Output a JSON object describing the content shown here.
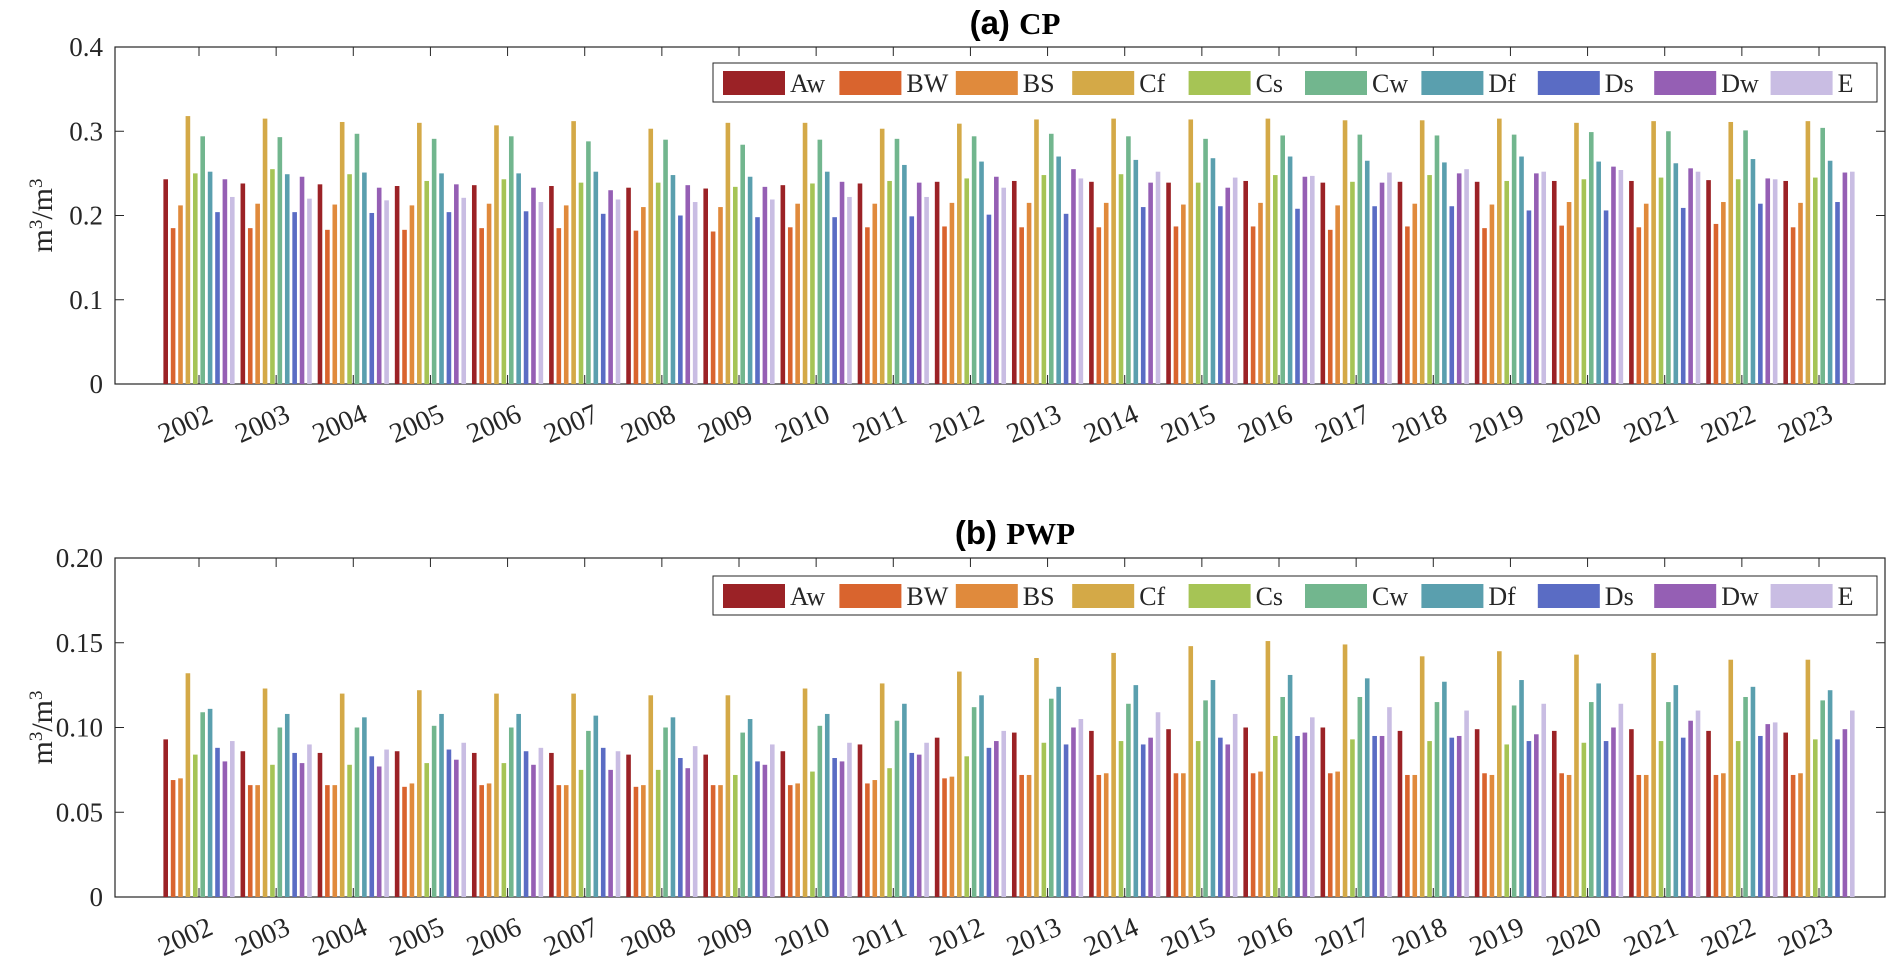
{
  "legend": [
    "Aw",
    "BW",
    "BS",
    "Cf",
    "Cs",
    "Cw",
    "Df",
    "Ds",
    "Dw",
    "E"
  ],
  "colors": [
    "#9b2226",
    "#d9642e",
    "#e08a3c",
    "#d4a947",
    "#a6c455",
    "#72b68e",
    "#5a9fae",
    "#5a6cc4",
    "#955fb4",
    "#c9bde3"
  ],
  "chart_data": [
    {
      "type": "bar",
      "panel_label": "(a)",
      "title": "CP",
      "ylabel": "m3/m3",
      "ylim": [
        0,
        0.4
      ],
      "yticks": [
        "0",
        "0.1",
        "0.2",
        "0.3",
        "0.4"
      ],
      "tick_values": [
        0,
        0.1,
        0.2,
        0.3,
        0.4
      ],
      "categories": [
        "2002",
        "2003",
        "2004",
        "2005",
        "2006",
        "2007",
        "2008",
        "2009",
        "2010",
        "2011",
        "2012",
        "2013",
        "2014",
        "2015",
        "2016",
        "2017",
        "2018",
        "2019",
        "2020",
        "2021",
        "2022",
        "2023"
      ],
      "series": [
        {
          "name": "Aw",
          "values": [
            0.243,
            0.238,
            0.237,
            0.235,
            0.236,
            0.235,
            0.233,
            0.232,
            0.236,
            0.238,
            0.24,
            0.241,
            0.24,
            0.239,
            0.241,
            0.239,
            0.24,
            0.24,
            0.241,
            0.241,
            0.242,
            0.241
          ]
        },
        {
          "name": "BW",
          "values": [
            0.185,
            0.185,
            0.183,
            0.183,
            0.185,
            0.185,
            0.182,
            0.181,
            0.186,
            0.186,
            0.187,
            0.186,
            0.186,
            0.187,
            0.187,
            0.183,
            0.187,
            0.185,
            0.188,
            0.186,
            0.19,
            0.186
          ]
        },
        {
          "name": "BS",
          "values": [
            0.212,
            0.214,
            0.213,
            0.212,
            0.214,
            0.212,
            0.21,
            0.21,
            0.214,
            0.214,
            0.215,
            0.215,
            0.215,
            0.213,
            0.215,
            0.212,
            0.214,
            0.213,
            0.216,
            0.214,
            0.216,
            0.215
          ]
        },
        {
          "name": "Cf",
          "values": [
            0.318,
            0.315,
            0.311,
            0.31,
            0.307,
            0.312,
            0.303,
            0.31,
            0.31,
            0.303,
            0.309,
            0.314,
            0.315,
            0.314,
            0.315,
            0.313,
            0.313,
            0.315,
            0.31,
            0.312,
            0.311,
            0.312
          ]
        },
        {
          "name": "Cs",
          "values": [
            0.25,
            0.255,
            0.249,
            0.241,
            0.243,
            0.239,
            0.239,
            0.234,
            0.238,
            0.241,
            0.244,
            0.248,
            0.249,
            0.239,
            0.248,
            0.24,
            0.248,
            0.241,
            0.243,
            0.245,
            0.243,
            0.245
          ]
        },
        {
          "name": "Cw",
          "values": [
            0.294,
            0.293,
            0.297,
            0.291,
            0.294,
            0.288,
            0.29,
            0.284,
            0.29,
            0.291,
            0.294,
            0.297,
            0.294,
            0.291,
            0.295,
            0.296,
            0.295,
            0.296,
            0.299,
            0.3,
            0.301,
            0.304
          ]
        },
        {
          "name": "Df",
          "values": [
            0.252,
            0.249,
            0.251,
            0.25,
            0.25,
            0.252,
            0.248,
            0.246,
            0.252,
            0.26,
            0.264,
            0.27,
            0.266,
            0.268,
            0.27,
            0.265,
            0.263,
            0.27,
            0.264,
            0.262,
            0.267,
            0.265
          ]
        },
        {
          "name": "Ds",
          "values": [
            0.204,
            0.204,
            0.203,
            0.204,
            0.205,
            0.202,
            0.2,
            0.198,
            0.198,
            0.199,
            0.201,
            0.202,
            0.21,
            0.211,
            0.208,
            0.211,
            0.211,
            0.206,
            0.206,
            0.209,
            0.214,
            0.216
          ]
        },
        {
          "name": "Dw",
          "values": [
            0.243,
            0.246,
            0.233,
            0.237,
            0.233,
            0.23,
            0.236,
            0.234,
            0.24,
            0.239,
            0.246,
            0.255,
            0.239,
            0.233,
            0.246,
            0.239,
            0.25,
            0.25,
            0.258,
            0.256,
            0.244,
            0.251
          ]
        },
        {
          "name": "E",
          "values": [
            0.222,
            0.22,
            0.218,
            0.221,
            0.216,
            0.219,
            0.216,
            0.219,
            0.222,
            0.222,
            0.233,
            0.244,
            0.252,
            0.245,
            0.247,
            0.251,
            0.255,
            0.252,
            0.254,
            0.252,
            0.243,
            0.252
          ]
        }
      ]
    },
    {
      "type": "bar",
      "panel_label": "(b)",
      "title": "PWP",
      "ylabel": "m3/m3",
      "ylim": [
        0,
        0.2
      ],
      "yticks": [
        "0",
        "0.05",
        "0.10",
        "0.15",
        "0.20"
      ],
      "tick_values": [
        0,
        0.05,
        0.1,
        0.15,
        0.2
      ],
      "categories": [
        "2002",
        "2003",
        "2004",
        "2005",
        "2006",
        "2007",
        "2008",
        "2009",
        "2010",
        "2011",
        "2012",
        "2013",
        "2014",
        "2015",
        "2016",
        "2017",
        "2018",
        "2019",
        "2020",
        "2021",
        "2022",
        "2023"
      ],
      "series": [
        {
          "name": "Aw",
          "values": [
            0.093,
            0.086,
            0.085,
            0.086,
            0.085,
            0.085,
            0.084,
            0.084,
            0.086,
            0.09,
            0.094,
            0.097,
            0.098,
            0.099,
            0.1,
            0.1,
            0.098,
            0.099,
            0.098,
            0.099,
            0.098,
            0.097
          ]
        },
        {
          "name": "BW",
          "values": [
            0.069,
            0.066,
            0.066,
            0.065,
            0.066,
            0.066,
            0.065,
            0.066,
            0.066,
            0.067,
            0.07,
            0.072,
            0.072,
            0.073,
            0.073,
            0.073,
            0.072,
            0.073,
            0.073,
            0.072,
            0.072,
            0.072
          ]
        },
        {
          "name": "BS",
          "values": [
            0.07,
            0.066,
            0.066,
            0.067,
            0.067,
            0.066,
            0.066,
            0.066,
            0.067,
            0.069,
            0.071,
            0.072,
            0.073,
            0.073,
            0.074,
            0.074,
            0.072,
            0.072,
            0.072,
            0.072,
            0.073,
            0.073
          ]
        },
        {
          "name": "Cf",
          "values": [
            0.132,
            0.123,
            0.12,
            0.122,
            0.12,
            0.12,
            0.119,
            0.119,
            0.123,
            0.126,
            0.133,
            0.141,
            0.144,
            0.148,
            0.151,
            0.149,
            0.142,
            0.145,
            0.143,
            0.144,
            0.14,
            0.14
          ]
        },
        {
          "name": "Cs",
          "values": [
            0.084,
            0.078,
            0.078,
            0.079,
            0.079,
            0.075,
            0.075,
            0.072,
            0.074,
            0.076,
            0.083,
            0.091,
            0.092,
            0.092,
            0.095,
            0.093,
            0.092,
            0.09,
            0.091,
            0.092,
            0.092,
            0.093
          ]
        },
        {
          "name": "Cw",
          "values": [
            0.109,
            0.1,
            0.1,
            0.101,
            0.1,
            0.098,
            0.1,
            0.097,
            0.101,
            0.104,
            0.112,
            0.117,
            0.114,
            0.116,
            0.118,
            0.118,
            0.115,
            0.113,
            0.115,
            0.115,
            0.118,
            0.116
          ]
        },
        {
          "name": "Df",
          "values": [
            0.111,
            0.108,
            0.106,
            0.108,
            0.108,
            0.107,
            0.106,
            0.105,
            0.108,
            0.114,
            0.119,
            0.124,
            0.125,
            0.128,
            0.131,
            0.129,
            0.127,
            0.128,
            0.126,
            0.125,
            0.124,
            0.122
          ]
        },
        {
          "name": "Ds",
          "values": [
            0.088,
            0.085,
            0.083,
            0.087,
            0.086,
            0.088,
            0.082,
            0.08,
            0.082,
            0.085,
            0.088,
            0.09,
            0.09,
            0.094,
            0.095,
            0.095,
            0.094,
            0.092,
            0.092,
            0.094,
            0.095,
            0.093
          ]
        },
        {
          "name": "Dw",
          "values": [
            0.08,
            0.079,
            0.077,
            0.081,
            0.078,
            0.075,
            0.076,
            0.078,
            0.08,
            0.084,
            0.092,
            0.1,
            0.094,
            0.09,
            0.097,
            0.095,
            0.095,
            0.096,
            0.1,
            0.104,
            0.102,
            0.099
          ]
        },
        {
          "name": "E",
          "values": [
            0.092,
            0.09,
            0.087,
            0.091,
            0.088,
            0.086,
            0.089,
            0.09,
            0.091,
            0.091,
            0.098,
            0.105,
            0.109,
            0.108,
            0.106,
            0.112,
            0.11,
            0.114,
            0.114,
            0.11,
            0.103,
            0.11
          ]
        }
      ]
    }
  ]
}
